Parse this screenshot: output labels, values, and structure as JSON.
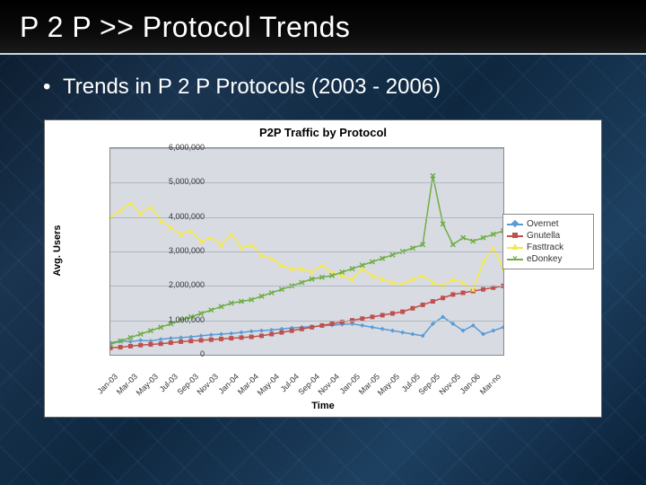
{
  "slide": {
    "title": "P 2 P >> Protocol Trends",
    "bullet": "Trends in P 2 P Protocols (2003 - 2006)"
  },
  "chart": {
    "type": "line",
    "title": "P2P Traffic by Protocol",
    "ylabel": "Avg. Users",
    "xlabel": "Time",
    "ylim": [
      0,
      6000000
    ],
    "ytick_step": 1000000,
    "yticks_fmt": [
      "0",
      "1,000,000",
      "2,000,000",
      "3,000,000",
      "4,000,000",
      "5,000,000",
      "6,000,000"
    ],
    "xlabels": [
      "Jan-03",
      "Mar-03",
      "May-03",
      "Jul-03",
      "Sep-03",
      "Nov-03",
      "Jan-04",
      "Mar-04",
      "May-04",
      "Jul-04",
      "Sep-04",
      "Nov-04",
      "Jan-05",
      "Mar-05",
      "May-05",
      "Jul-05",
      "Sep-05",
      "Nov-05",
      "Jan-06",
      "Mar-no"
    ],
    "n_points": 40,
    "background_color": "#d8dce2",
    "grid_color": "#b0b6c0",
    "series": [
      {
        "name": "Overnet",
        "color": "#5b9bd5",
        "marker": "diamond",
        "values": [
          350000,
          400000,
          380000,
          420000,
          400000,
          450000,
          480000,
          500000,
          520000,
          550000,
          580000,
          600000,
          620000,
          650000,
          680000,
          700000,
          720000,
          750000,
          780000,
          800000,
          820000,
          840000,
          860000,
          880000,
          900000,
          850000,
          800000,
          750000,
          700000,
          650000,
          600000,
          550000,
          900000,
          1100000,
          900000,
          700000,
          850000,
          600000,
          700000,
          800000
        ]
      },
      {
        "name": "Gnutella",
        "color": "#c0504d",
        "marker": "square",
        "values": [
          200000,
          220000,
          250000,
          280000,
          300000,
          320000,
          350000,
          380000,
          400000,
          420000,
          440000,
          460000,
          480000,
          500000,
          520000,
          550000,
          600000,
          650000,
          700000,
          750000,
          800000,
          850000,
          900000,
          950000,
          1000000,
          1050000,
          1100000,
          1150000,
          1200000,
          1250000,
          1350000,
          1450000,
          1550000,
          1650000,
          1750000,
          1800000,
          1850000,
          1900000,
          1950000,
          2000000
        ]
      },
      {
        "name": "Fasttrack",
        "color": "#f7e948",
        "marker": "triangle",
        "values": [
          4000000,
          4200000,
          4400000,
          4100000,
          4300000,
          3900000,
          3700000,
          3500000,
          3600000,
          3300000,
          3400000,
          3200000,
          3500000,
          3100000,
          3200000,
          2900000,
          2800000,
          2600000,
          2500000,
          2500000,
          2400000,
          2600000,
          2400000,
          2300000,
          2200000,
          2500000,
          2300000,
          2200000,
          2100000,
          2050000,
          2200000,
          2300000,
          2100000,
          2000000,
          2200000,
          2100000,
          1900000,
          2700000,
          3100000,
          2500000
        ]
      },
      {
        "name": "eDonkey",
        "color": "#70ad47",
        "marker": "x",
        "values": [
          300000,
          400000,
          500000,
          600000,
          700000,
          800000,
          900000,
          1000000,
          1100000,
          1200000,
          1300000,
          1400000,
          1500000,
          1550000,
          1600000,
          1700000,
          1800000,
          1900000,
          2000000,
          2100000,
          2200000,
          2250000,
          2300000,
          2400000,
          2500000,
          2600000,
          2700000,
          2800000,
          2900000,
          3000000,
          3100000,
          3200000,
          5200000,
          3800000,
          3200000,
          3400000,
          3300000,
          3400000,
          3500000,
          3600000
        ]
      }
    ],
    "line_width": 1.5,
    "marker_size": 5,
    "title_fontsize": 13,
    "label_fontsize": 11,
    "tick_fontsize": 9
  }
}
